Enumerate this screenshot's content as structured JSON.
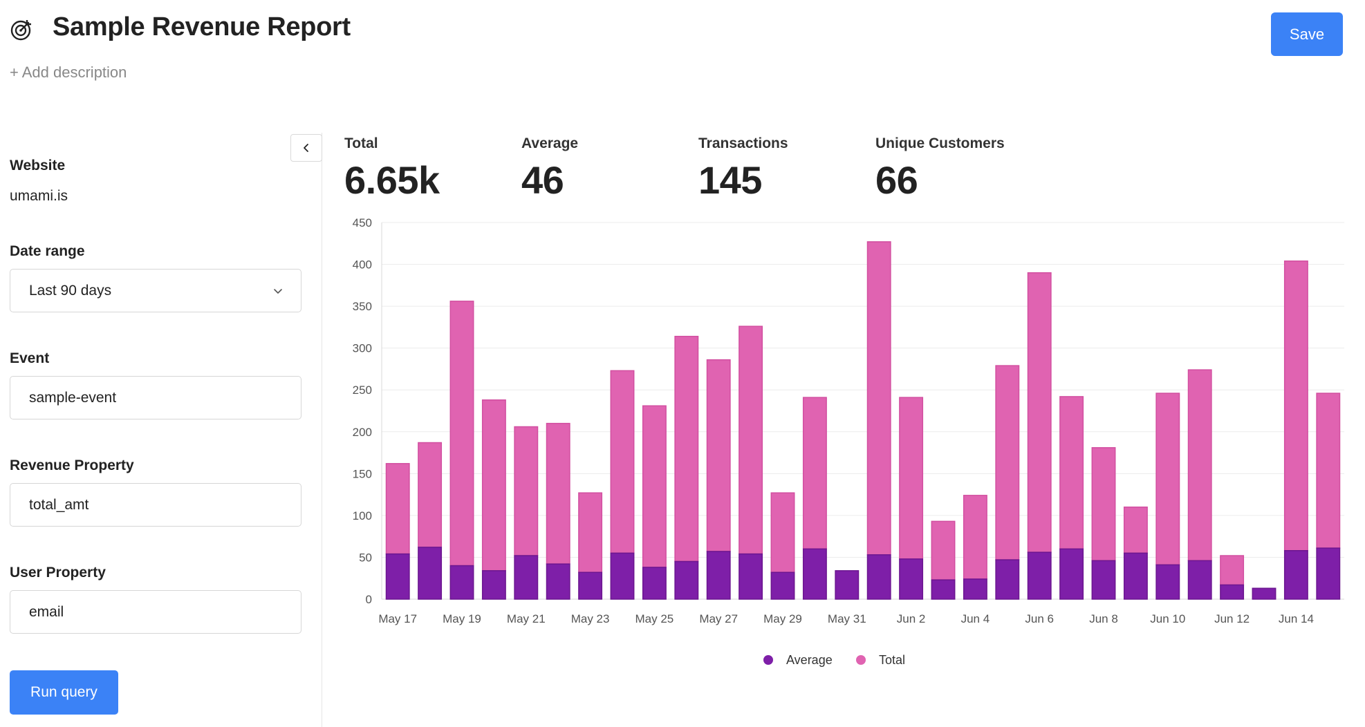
{
  "header": {
    "title": "Sample Revenue Report",
    "add_description": "+ Add description",
    "save_label": "Save"
  },
  "sidebar": {
    "website_label": "Website",
    "website_value": "umami.is",
    "date_range_label": "Date range",
    "date_range_value": "Last 90 days",
    "event_label": "Event",
    "event_value": "sample-event",
    "revenue_property_label": "Revenue Property",
    "revenue_property_value": "total_amt",
    "user_property_label": "User Property",
    "user_property_value": "email",
    "run_query_label": "Run query"
  },
  "metrics": [
    {
      "label": "Total",
      "value": "6.65k"
    },
    {
      "label": "Average",
      "value": "46"
    },
    {
      "label": "Transactions",
      "value": "145"
    },
    {
      "label": "Unique Customers",
      "value": "66"
    }
  ],
  "colors": {
    "accent": "#3b82f6",
    "average": "#7e1fa8",
    "total": "#e063b1"
  },
  "icons": {
    "title": "target-icon",
    "collapse": "chevron-left-icon",
    "select": "chevron-down-icon"
  },
  "chart_data": {
    "type": "bar",
    "stacked": true,
    "categories": [
      "May 17",
      "May 18",
      "May 19",
      "May 20",
      "May 21",
      "May 22",
      "May 23",
      "May 24",
      "May 25",
      "May 26",
      "May 27",
      "May 28",
      "May 29",
      "May 30",
      "May 31",
      "Jun 1",
      "Jun 2",
      "Jun 3",
      "Jun 4",
      "Jun 5",
      "Jun 6",
      "Jun 7",
      "Jun 8",
      "Jun 9",
      "Jun 10",
      "Jun 11",
      "Jun 12",
      "Jun 13",
      "Jun 14",
      "Jun 15"
    ],
    "tick_labels": [
      "May 17",
      "May 19",
      "May 21",
      "May 23",
      "May 25",
      "May 27",
      "May 29",
      "May 31",
      "Jun 2",
      "Jun 4",
      "Jun 6",
      "Jun 8",
      "Jun 10",
      "Jun 12",
      "Jun 14"
    ],
    "series": [
      {
        "name": "Average",
        "values": [
          54,
          62,
          40,
          34,
          52,
          42,
          32,
          55,
          38,
          45,
          57,
          54,
          32,
          60,
          34,
          53,
          48,
          23,
          24,
          47,
          56,
          60,
          46,
          55,
          41,
          46,
          17,
          13,
          58,
          61
        ]
      },
      {
        "name": "Total",
        "values": [
          162,
          187,
          356,
          238,
          206,
          210,
          127,
          273,
          231,
          314,
          286,
          326,
          127,
          241,
          34,
          427,
          241,
          93,
          124,
          279,
          390,
          242,
          181,
          110,
          246,
          274,
          52,
          13,
          404,
          246
        ]
      }
    ],
    "yticks": [
      0,
      50,
      100,
      150,
      200,
      250,
      300,
      350,
      400,
      450
    ],
    "ylim": [
      0,
      450
    ],
    "grid": true,
    "legend_position": "bottom-center"
  }
}
